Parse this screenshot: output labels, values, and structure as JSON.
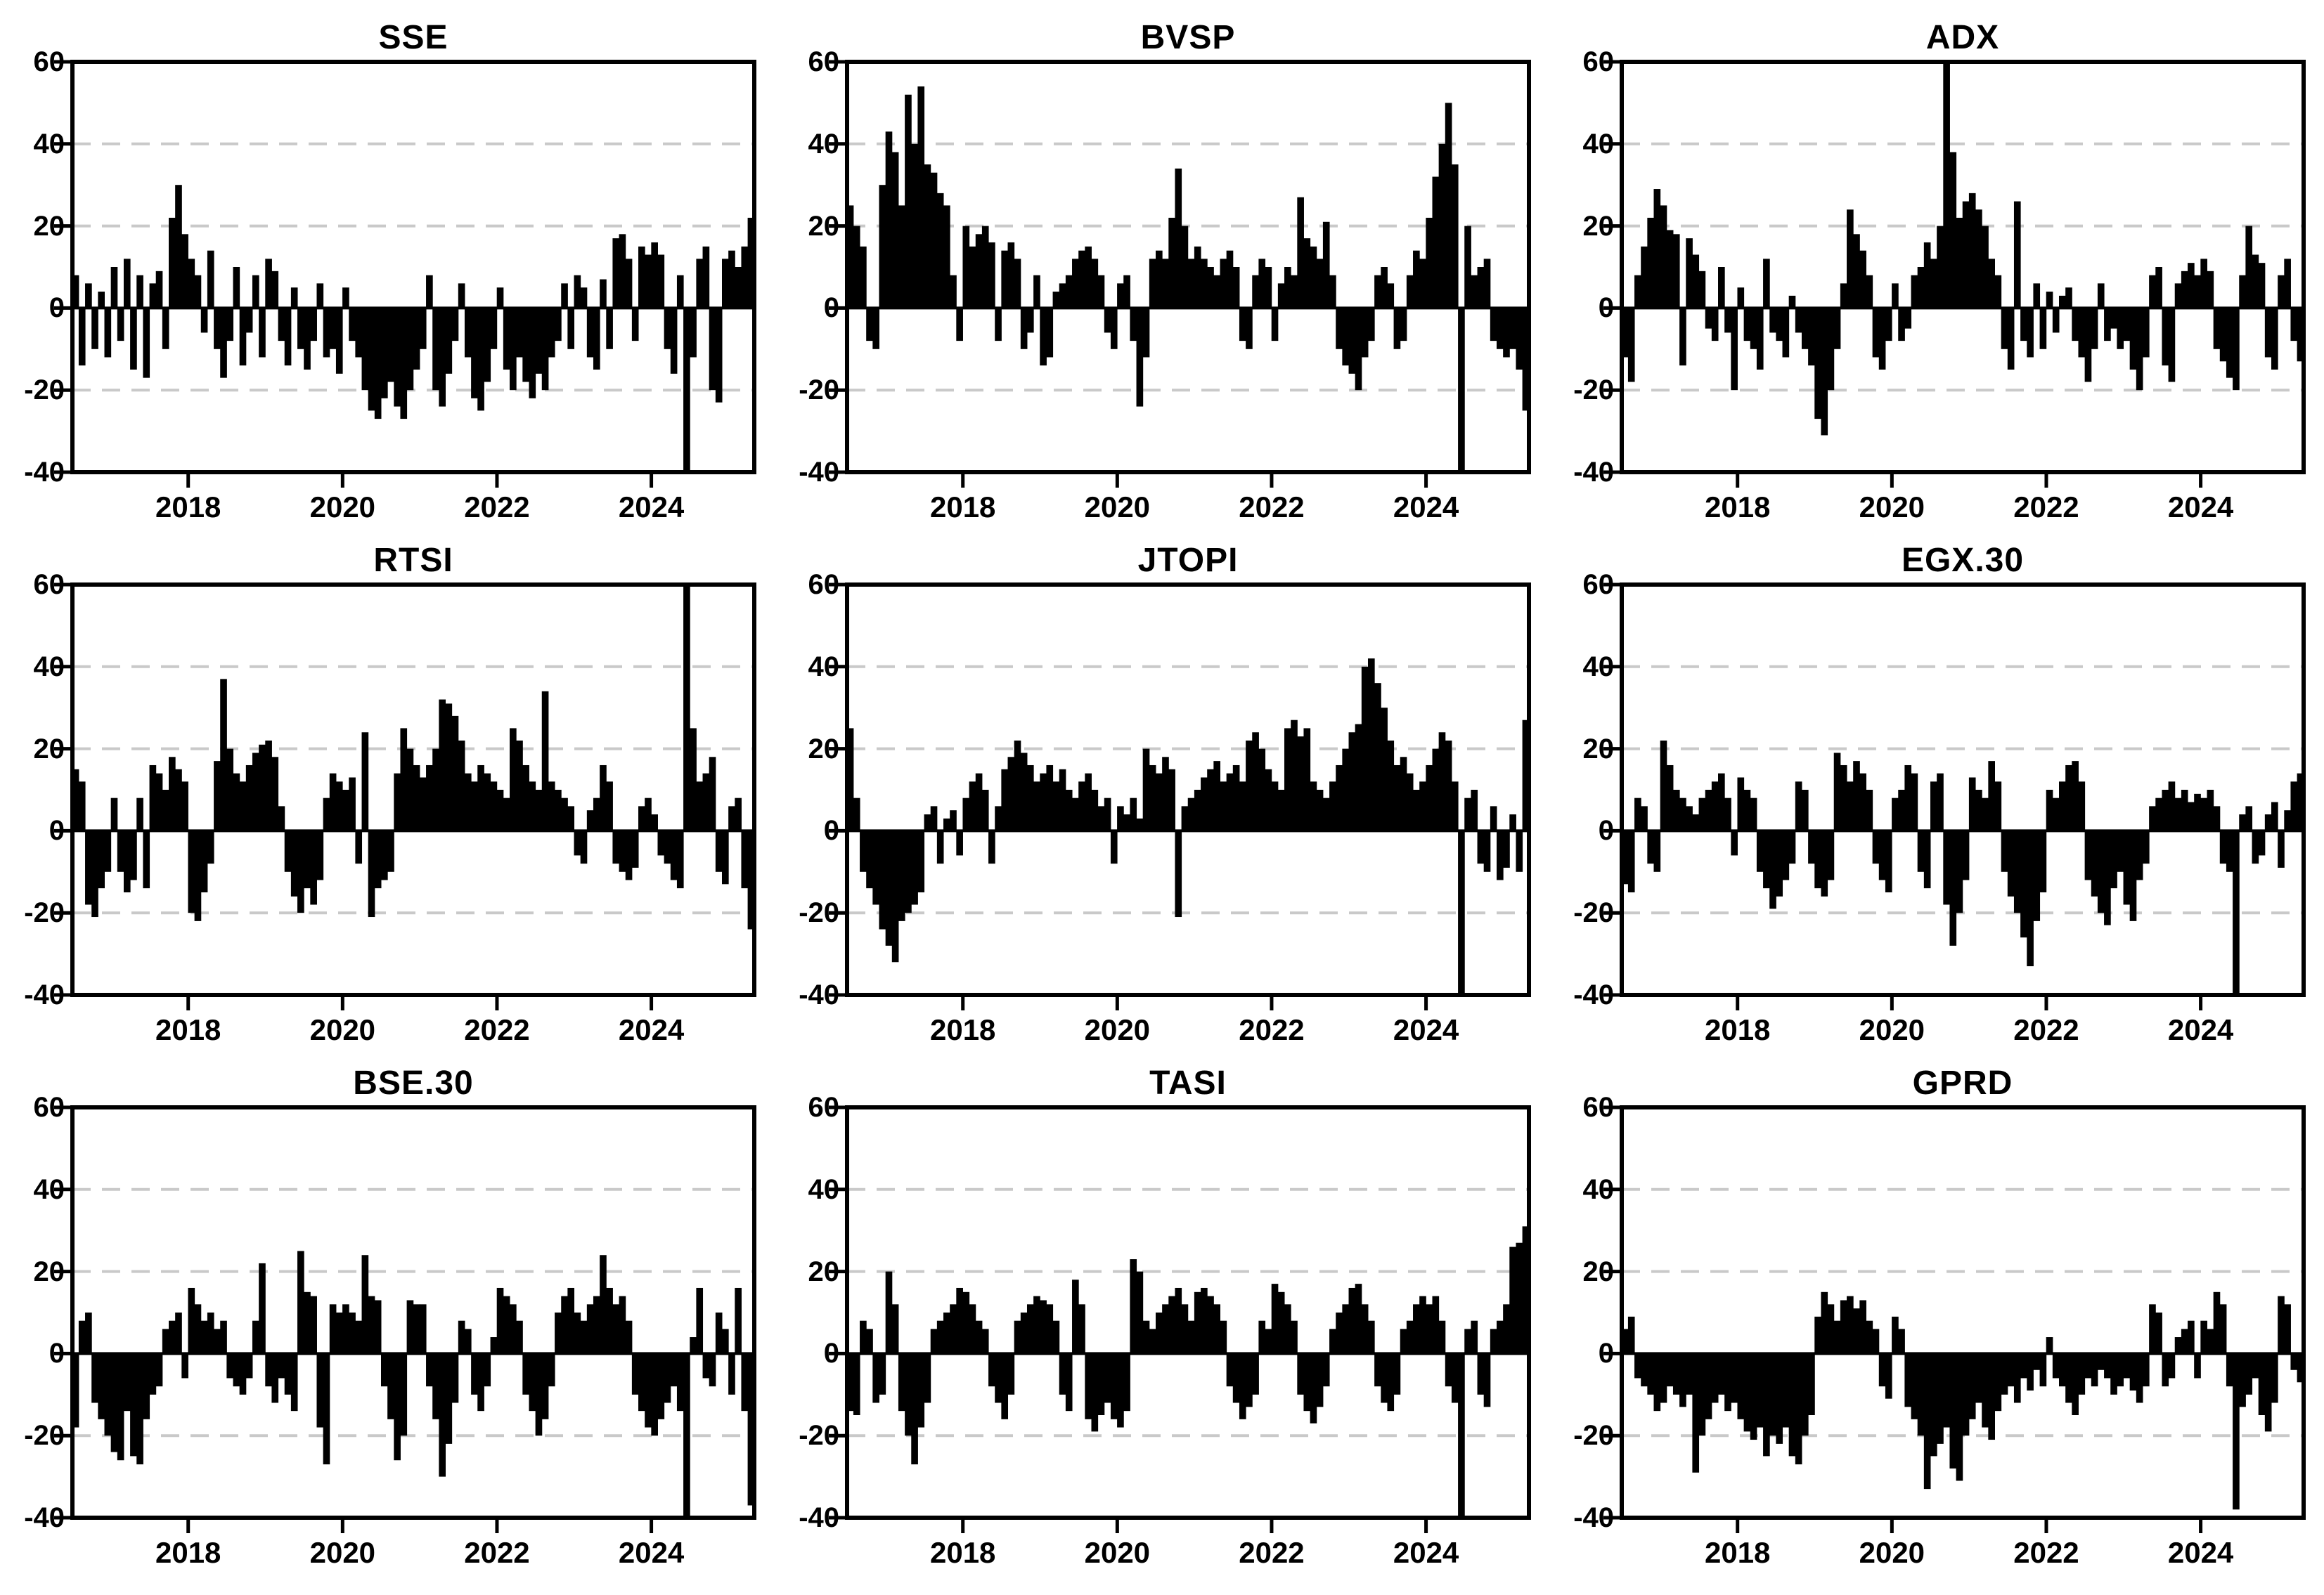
{
  "figure": {
    "background_color": "#ffffff",
    "bar_color": "#000000",
    "grid_color": "#c9c9c9",
    "axis_color": "#000000",
    "rows": 3,
    "cols": 3
  },
  "chart_data": [
    {
      "type": "bar",
      "title": "SSE",
      "x_start": 2016.5,
      "x_step_years": 0.08333,
      "x_end": 2025.33,
      "ylim": [
        -40,
        60
      ],
      "y_ticks": [
        60,
        40,
        20,
        0,
        -20,
        -40
      ],
      "y_gridlines": [
        40,
        20,
        -20
      ],
      "x_ticks": [
        2018,
        2020,
        2022,
        2024
      ],
      "grid": "dashed",
      "legend": "none",
      "values": [
        8,
        -14,
        6,
        -10,
        4,
        -12,
        10,
        -8,
        12,
        -15,
        8,
        -17,
        6,
        9,
        -10,
        22,
        30,
        18,
        12,
        8,
        -6,
        14,
        -10,
        -17,
        -8,
        10,
        -14,
        -6,
        8,
        -12,
        12,
        9,
        -8,
        -14,
        5,
        -10,
        -15,
        -8,
        6,
        -12,
        -10,
        -16,
        5,
        -8,
        -12,
        -20,
        -25,
        -27,
        -22,
        -18,
        -24,
        -27,
        -20,
        -15,
        -10,
        8,
        -20,
        -24,
        -16,
        -8,
        6,
        -12,
        -22,
        -25,
        -18,
        -10,
        5,
        -15,
        -20,
        -12,
        -18,
        -22,
        -16,
        -20,
        -12,
        -8,
        6,
        -10,
        8,
        5,
        -12,
        -15,
        7,
        -10,
        17,
        18,
        12,
        -8,
        15,
        13,
        16,
        13,
        -10,
        -16,
        8,
        -45,
        -12,
        12,
        15,
        -20,
        -23,
        12,
        14,
        10,
        15,
        22
      ]
    },
    {
      "type": "bar",
      "title": "BVSP",
      "x_start": 2016.5,
      "x_step_years": 0.08333,
      "x_end": 2025.33,
      "ylim": [
        -40,
        60
      ],
      "y_ticks": [
        60,
        40,
        20,
        0,
        -20,
        -40
      ],
      "y_gridlines": [
        40,
        20,
        -20
      ],
      "x_ticks": [
        2018,
        2020,
        2022,
        2024
      ],
      "grid": "dashed",
      "legend": "none",
      "values": [
        25,
        20,
        15,
        -8,
        -10,
        30,
        43,
        38,
        25,
        52,
        40,
        54,
        35,
        33,
        28,
        25,
        8,
        -8,
        20,
        15,
        18,
        20,
        16,
        -8,
        14,
        16,
        12,
        -10,
        -6,
        8,
        -14,
        -12,
        4,
        6,
        8,
        12,
        14,
        15,
        12,
        8,
        -6,
        -10,
        6,
        8,
        -8,
        -24,
        -12,
        12,
        14,
        12,
        22,
        34,
        20,
        12,
        15,
        12,
        10,
        8,
        12,
        14,
        10,
        -8,
        -10,
        8,
        12,
        10,
        -8,
        6,
        10,
        8,
        27,
        17,
        15,
        12,
        21,
        8,
        -10,
        -14,
        -16,
        -20,
        -12,
        -8,
        8,
        10,
        6,
        -10,
        -8,
        8,
        14,
        12,
        22,
        32,
        40,
        50,
        35,
        -45,
        20,
        8,
        10,
        12,
        -8,
        -10,
        -12,
        -10,
        -15,
        -25
      ]
    },
    {
      "type": "bar",
      "title": "ADX",
      "x_start": 2016.5,
      "x_step_years": 0.08333,
      "x_end": 2025.33,
      "ylim": [
        -40,
        60
      ],
      "y_ticks": [
        60,
        40,
        20,
        0,
        -20,
        -40
      ],
      "y_gridlines": [
        40,
        20,
        -20
      ],
      "x_ticks": [
        2018,
        2020,
        2022,
        2024
      ],
      "grid": "dashed",
      "legend": "none",
      "values": [
        -12,
        -18,
        8,
        15,
        22,
        29,
        25,
        19,
        18,
        -14,
        17,
        13,
        9,
        -5,
        -8,
        10,
        -6,
        -20,
        5,
        -8,
        -10,
        -15,
        12,
        -6,
        -8,
        -12,
        3,
        -6,
        -10,
        -14,
        -27,
        -31,
        -20,
        -10,
        6,
        24,
        18,
        14,
        8,
        -12,
        -15,
        -8,
        6,
        -8,
        -5,
        8,
        10,
        16,
        12,
        20,
        65,
        38,
        22,
        26,
        28,
        24,
        20,
        12,
        8,
        -10,
        -15,
        26,
        -8,
        -12,
        6,
        -10,
        4,
        -6,
        3,
        5,
        -8,
        -12,
        -18,
        -10,
        6,
        -8,
        -5,
        -10,
        -8,
        -15,
        -20,
        -12,
        8,
        10,
        -14,
        -18,
        6,
        9,
        11,
        8,
        12,
        9,
        -10,
        -13,
        -17,
        -20,
        8,
        20,
        13,
        11,
        -12,
        -15,
        8,
        12,
        -8,
        -13
      ]
    },
    {
      "type": "bar",
      "title": "RTSI",
      "x_start": 2016.5,
      "x_step_years": 0.08333,
      "x_end": 2025.33,
      "ylim": [
        -40,
        60
      ],
      "y_ticks": [
        60,
        40,
        20,
        0,
        -20,
        -40
      ],
      "y_gridlines": [
        40,
        20,
        -20
      ],
      "x_ticks": [
        2018,
        2020,
        2022,
        2024
      ],
      "grid": "dashed",
      "legend": "none",
      "values": [
        15,
        12,
        -18,
        -21,
        -14,
        -10,
        8,
        -10,
        -15,
        -12,
        8,
        -14,
        16,
        14,
        10,
        18,
        15,
        12,
        -20,
        -22,
        -15,
        -8,
        17,
        37,
        20,
        14,
        12,
        16,
        19,
        21,
        22,
        18,
        6,
        -10,
        -16,
        -20,
        -14,
        -18,
        -12,
        8,
        14,
        12,
        10,
        13,
        -8,
        24,
        -21,
        -14,
        -12,
        -10,
        14,
        25,
        20,
        16,
        13,
        16,
        20,
        32,
        31,
        28,
        22,
        14,
        12,
        16,
        14,
        12,
        10,
        8,
        25,
        22,
        16,
        12,
        10,
        34,
        12,
        10,
        8,
        6,
        -6,
        -8,
        5,
        8,
        16,
        12,
        -8,
        -10,
        -12,
        -9,
        6,
        8,
        4,
        -6,
        -8,
        -12,
        -14,
        70,
        25,
        12,
        14,
        18,
        -10,
        -13,
        6,
        8,
        -14,
        -24
      ]
    },
    {
      "type": "bar",
      "title": "JTOPI",
      "x_start": 2016.5,
      "x_step_years": 0.08333,
      "x_end": 2025.33,
      "ylim": [
        -40,
        60
      ],
      "y_ticks": [
        60,
        40,
        20,
        0,
        -20,
        -40
      ],
      "y_gridlines": [
        40,
        20,
        -20
      ],
      "x_ticks": [
        2018,
        2020,
        2022,
        2024
      ],
      "grid": "dashed",
      "legend": "none",
      "values": [
        25,
        8,
        -10,
        -14,
        -18,
        -24,
        -28,
        -32,
        -22,
        -20,
        -18,
        -15,
        4,
        6,
        -8,
        3,
        5,
        -6,
        8,
        12,
        14,
        10,
        -8,
        6,
        15,
        18,
        22,
        19,
        16,
        12,
        14,
        16,
        12,
        15,
        10,
        8,
        12,
        14,
        10,
        6,
        8,
        -8,
        6,
        4,
        8,
        3,
        20,
        16,
        14,
        18,
        15,
        -21,
        6,
        8,
        10,
        13,
        15,
        17,
        12,
        14,
        16,
        12,
        22,
        24,
        20,
        15,
        12,
        10,
        25,
        27,
        23,
        25,
        12,
        10,
        8,
        12,
        16,
        20,
        24,
        26,
        40,
        42,
        36,
        30,
        22,
        16,
        18,
        14,
        10,
        12,
        16,
        20,
        24,
        22,
        12,
        -45,
        8,
        10,
        -8,
        -10,
        6,
        -12,
        -9,
        4,
        -10,
        27
      ]
    },
    {
      "type": "bar",
      "title": "EGX.30",
      "x_start": 2016.5,
      "x_step_years": 0.08333,
      "x_end": 2025.33,
      "ylim": [
        -40,
        60
      ],
      "y_ticks": [
        60,
        40,
        20,
        0,
        -20,
        -40
      ],
      "y_gridlines": [
        40,
        20,
        -20
      ],
      "x_ticks": [
        2018,
        2020,
        2022,
        2024
      ],
      "grid": "dashed",
      "legend": "none",
      "values": [
        -13,
        -15,
        8,
        6,
        -8,
        -10,
        22,
        16,
        10,
        8,
        6,
        4,
        8,
        10,
        12,
        14,
        8,
        -6,
        13,
        10,
        8,
        -10,
        -14,
        -19,
        -16,
        -12,
        -8,
        12,
        10,
        -8,
        -14,
        -16,
        -12,
        19,
        16,
        12,
        17,
        14,
        10,
        -8,
        -12,
        -15,
        8,
        10,
        16,
        14,
        -10,
        -14,
        12,
        14,
        -18,
        -28,
        -20,
        -12,
        13,
        10,
        8,
        17,
        12,
        -10,
        -16,
        -20,
        -26,
        -33,
        -22,
        -15,
        10,
        8,
        12,
        16,
        17,
        12,
        -12,
        -16,
        -20,
        -23,
        -14,
        -10,
        -18,
        -22,
        -12,
        -8,
        6,
        8,
        10,
        12,
        8,
        10,
        7,
        9,
        8,
        10,
        6,
        -8,
        -10,
        -45,
        4,
        6,
        -8,
        -6,
        4,
        7,
        -9,
        5,
        12,
        14
      ]
    },
    {
      "type": "bar",
      "title": "BSE.30",
      "x_start": 2016.5,
      "x_step_years": 0.08333,
      "x_end": 2025.33,
      "ylim": [
        -40,
        60
      ],
      "y_ticks": [
        60,
        40,
        20,
        0,
        -20,
        -40
      ],
      "y_gridlines": [
        40,
        20,
        -20
      ],
      "x_ticks": [
        2018,
        2020,
        2022,
        2024
      ],
      "grid": "dashed",
      "legend": "none",
      "values": [
        -18,
        8,
        10,
        -12,
        -16,
        -20,
        -24,
        -26,
        -14,
        -25,
        -27,
        -16,
        -10,
        -8,
        6,
        8,
        10,
        -6,
        16,
        12,
        8,
        10,
        6,
        8,
        -6,
        -8,
        -10,
        -6,
        8,
        22,
        -8,
        -12,
        -6,
        -10,
        -14,
        25,
        15,
        14,
        -18,
        -27,
        12,
        10,
        12,
        10,
        8,
        24,
        14,
        13,
        -8,
        -16,
        -26,
        -20,
        13,
        12,
        12,
        -8,
        -16,
        -30,
        -22,
        -12,
        8,
        6,
        -10,
        -14,
        -8,
        4,
        16,
        14,
        12,
        8,
        -10,
        -14,
        -20,
        -16,
        -8,
        10,
        14,
        16,
        10,
        8,
        12,
        14,
        24,
        16,
        12,
        14,
        8,
        -10,
        -14,
        -18,
        -20,
        -16,
        -12,
        -8,
        -14,
        -42,
        4,
        16,
        -6,
        -8,
        10,
        6,
        -10,
        16,
        -14,
        -37
      ]
    },
    {
      "type": "bar",
      "title": "TASI",
      "x_start": 2016.5,
      "x_step_years": 0.08333,
      "x_end": 2025.33,
      "ylim": [
        -40,
        60
      ],
      "y_ticks": [
        60,
        40,
        20,
        0,
        -20,
        -40
      ],
      "y_gridlines": [
        40,
        20,
        -20
      ],
      "x_ticks": [
        2018,
        2020,
        2022,
        2024
      ],
      "grid": "dashed",
      "legend": "none",
      "values": [
        -14,
        -15,
        8,
        6,
        -12,
        -10,
        20,
        12,
        -14,
        -20,
        -27,
        -18,
        -12,
        6,
        8,
        10,
        12,
        16,
        15,
        12,
        8,
        6,
        -8,
        -12,
        -16,
        -10,
        8,
        10,
        12,
        14,
        13,
        12,
        8,
        -10,
        -14,
        18,
        12,
        -16,
        -19,
        -15,
        -12,
        -16,
        -18,
        -14,
        23,
        20,
        8,
        6,
        10,
        12,
        14,
        16,
        12,
        8,
        15,
        16,
        14,
        12,
        8,
        -8,
        -12,
        -16,
        -13,
        -10,
        8,
        6,
        17,
        15,
        12,
        8,
        -10,
        -14,
        -17,
        -13,
        -8,
        6,
        10,
        12,
        16,
        17,
        12,
        8,
        -8,
        -12,
        -14,
        -10,
        6,
        8,
        12,
        14,
        12,
        14,
        8,
        -8,
        -12,
        -42,
        6,
        8,
        -10,
        -13,
        6,
        8,
        12,
        26,
        27,
        31
      ]
    },
    {
      "type": "bar",
      "title": "GPRD",
      "x_start": 2016.5,
      "x_step_years": 0.08333,
      "x_end": 2025.33,
      "ylim": [
        -40,
        60
      ],
      "y_ticks": [
        60,
        40,
        20,
        0,
        -20,
        -40
      ],
      "y_gridlines": [
        40,
        20,
        -20
      ],
      "x_ticks": [
        2018,
        2020,
        2022,
        2024
      ],
      "grid": "dashed",
      "legend": "none",
      "values": [
        6,
        9,
        -6,
        -8,
        -10,
        -14,
        -12,
        -8,
        -10,
        -13,
        -10,
        -29,
        -20,
        -16,
        -12,
        -10,
        -14,
        -12,
        -16,
        -19,
        -21,
        -18,
        -25,
        -20,
        -22,
        -18,
        -25,
        -27,
        -20,
        -15,
        9,
        15,
        12,
        8,
        13,
        14,
        11,
        13,
        8,
        6,
        -8,
        -11,
        9,
        6,
        -13,
        -16,
        -20,
        -33,
        -25,
        -22,
        -18,
        -28,
        -31,
        -20,
        -16,
        -12,
        -18,
        -21,
        -14,
        -10,
        -8,
        -12,
        -6,
        -9,
        -4,
        -8,
        4,
        -6,
        -8,
        -12,
        -15,
        -10,
        -6,
        -8,
        -4,
        -6,
        -10,
        -8,
        -6,
        -9,
        -12,
        -8,
        12,
        10,
        -8,
        -6,
        4,
        6,
        8,
        -6,
        8,
        6,
        15,
        12,
        -8,
        -38,
        -13,
        -10,
        -6,
        -15,
        -19,
        -12,
        14,
        12,
        -4,
        -7
      ]
    }
  ]
}
